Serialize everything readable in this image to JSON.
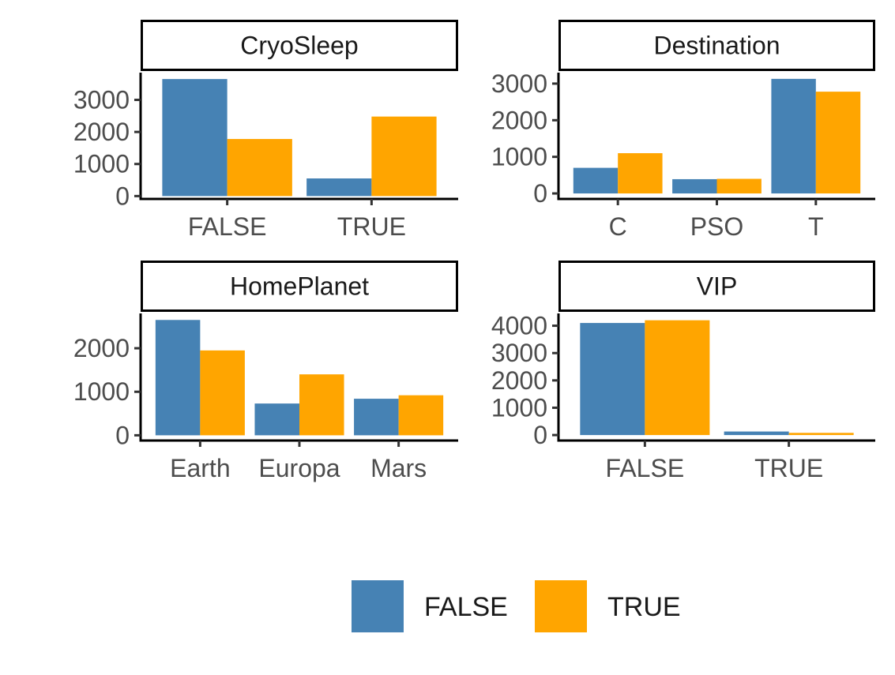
{
  "colors": {
    "false": "#4682B4",
    "true": "#FFA500"
  },
  "legend": {
    "entries": [
      {
        "label": "FALSE",
        "color": "#4682B4"
      },
      {
        "label": "TRUE",
        "color": "#FFA500"
      }
    ]
  },
  "chart_data": [
    {
      "type": "bar",
      "title": "CryoSleep",
      "categories": [
        "FALSE",
        "TRUE"
      ],
      "series": [
        {
          "name": "FALSE",
          "values": [
            3650,
            550
          ]
        },
        {
          "name": "TRUE",
          "values": [
            1780,
            2480
          ]
        }
      ],
      "yticks": [
        0,
        1000,
        2000,
        3000
      ],
      "ytick_labels": [
        "0",
        "1000",
        "2000",
        "3000"
      ],
      "ylim": [
        -90,
        3850
      ]
    },
    {
      "type": "bar",
      "title": "Destination",
      "categories": [
        "C",
        "PSO",
        "T"
      ],
      "series": [
        {
          "name": "FALSE",
          "values": [
            700,
            390,
            3130
          ]
        },
        {
          "name": "TRUE",
          "values": [
            1100,
            400,
            2780
          ]
        }
      ],
      "yticks": [
        0,
        1000,
        2000,
        3000
      ],
      "ytick_labels": [
        "0",
        "1000",
        "2000",
        "3000"
      ],
      "ylim": [
        -150,
        3300
      ]
    },
    {
      "type": "bar",
      "title": "HomePlanet",
      "categories": [
        "Earth",
        "Europa",
        "Mars"
      ],
      "series": [
        {
          "name": "FALSE",
          "values": [
            2650,
            730,
            840
          ]
        },
        {
          "name": "TRUE",
          "values": [
            1950,
            1400,
            920
          ]
        }
      ],
      "yticks": [
        0,
        1000,
        2000
      ],
      "ytick_labels": [
        "0",
        "1000",
        "2000"
      ],
      "ylim": [
        -120,
        2800
      ]
    },
    {
      "type": "bar",
      "title": "VIP",
      "categories": [
        "FALSE",
        "TRUE"
      ],
      "series": [
        {
          "name": "FALSE",
          "values": [
            4100,
            130
          ]
        },
        {
          "name": "TRUE",
          "values": [
            4200,
            80
          ]
        }
      ],
      "yticks": [
        0,
        1000,
        2000,
        3000,
        4000
      ],
      "ytick_labels": [
        "0",
        "1000",
        "2000",
        "3000",
        "4000"
      ],
      "ylim": [
        -200,
        4450
      ]
    }
  ]
}
